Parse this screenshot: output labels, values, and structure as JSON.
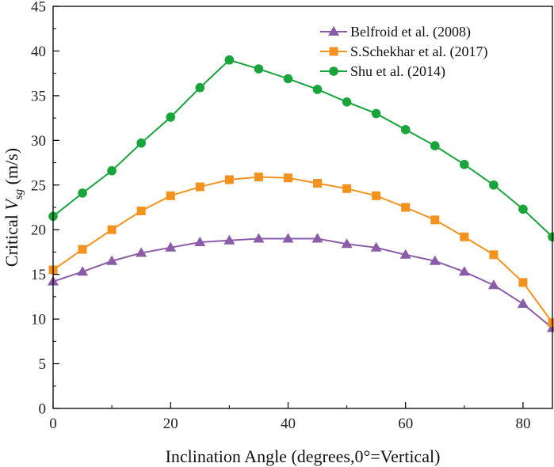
{
  "chart_data": {
    "type": "line",
    "title": "",
    "xlabel": "Inclination Angle (degrees,0°=Vertical)",
    "ylabel": {
      "prefix": "Critical ",
      "var": "V",
      "sub": "sg",
      "suffix": " (m/s)"
    },
    "xlim": [
      0,
      85
    ],
    "ylim": [
      0,
      45
    ],
    "x_ticks": [
      0,
      20,
      40,
      60,
      80
    ],
    "y_ticks": [
      0,
      5,
      10,
      15,
      20,
      25,
      30,
      35,
      40,
      45
    ],
    "x": [
      0,
      5,
      10,
      15,
      20,
      25,
      30,
      35,
      40,
      45,
      50,
      55,
      60,
      65,
      70,
      75,
      80,
      85
    ],
    "legend_position": "top-right",
    "series": [
      {
        "name": "Belfroid et al. (2008)",
        "color": "#8b5ca8",
        "marker": "triangle",
        "values": [
          14.2,
          15.3,
          16.5,
          17.4,
          18.0,
          18.6,
          18.8,
          19.0,
          19.0,
          19.0,
          18.4,
          18.0,
          17.2,
          16.5,
          15.3,
          13.8,
          11.7,
          9.0
        ]
      },
      {
        "name": "S.Schekhar et al. (2017)",
        "color": "#f4921f",
        "marker": "square",
        "values": [
          15.5,
          17.8,
          20.0,
          22.1,
          23.8,
          24.8,
          25.6,
          25.9,
          25.8,
          25.2,
          24.6,
          23.8,
          22.5,
          21.1,
          19.2,
          17.2,
          14.1,
          9.6
        ]
      },
      {
        "name": "Shu et al. (2014)",
        "color": "#1aa53c",
        "marker": "circle",
        "values": [
          21.5,
          24.1,
          26.6,
          29.7,
          32.6,
          35.9,
          39.0,
          38.0,
          36.9,
          35.7,
          34.3,
          33.0,
          31.2,
          29.4,
          27.3,
          25.0,
          22.3,
          19.2
        ]
      }
    ]
  }
}
